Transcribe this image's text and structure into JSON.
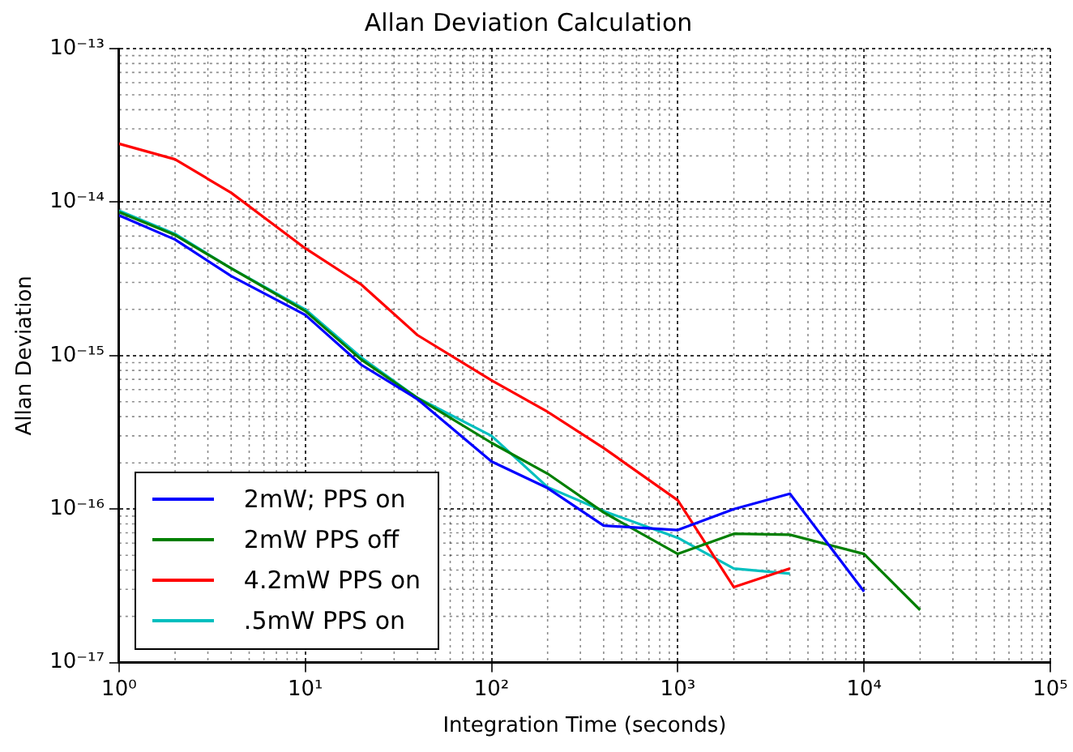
{
  "chart_data": {
    "type": "line",
    "title": "Allan Deviation Calculation",
    "xlabel": "Integration Time (seconds)",
    "ylabel": "Allan Deviation",
    "log": "xy",
    "grid": true,
    "legend": "bottom left",
    "marker": "none",
    "line_style": "solid",
    "xlim": [
      1,
      100000
    ],
    "xticks": [
      {
        "value": 1,
        "label": "10⁰"
      },
      {
        "value": 10,
        "label": "10¹"
      },
      {
        "value": 100,
        "label": "10²"
      },
      {
        "value": 1000,
        "label": "10³"
      },
      {
        "value": 10000,
        "label": "10⁴"
      },
      {
        "value": 100000,
        "label": "10⁵"
      }
    ],
    "ylim": [
      1e-17,
      1e-13
    ],
    "yticks": [
      {
        "value": 1e-17,
        "label": "10⁻¹⁷"
      },
      {
        "value": 1e-16,
        "label": "10⁻¹⁶"
      },
      {
        "value": 1e-15,
        "label": "10⁻¹⁵"
      },
      {
        "value": 1e-14,
        "label": "10⁻¹⁴"
      },
      {
        "value": 1e-13,
        "label": "10⁻¹³"
      }
    ],
    "series": [
      {
        "name": "2mW; PPS on",
        "color": "#0000ff",
        "x": [
          1,
          2,
          4,
          10,
          20,
          40,
          100,
          200,
          400,
          1000,
          2000,
          4000,
          10000
        ],
        "values": [
          8.2e-15,
          5.7e-15,
          3.3e-15,
          1.84e-15,
          8.7e-16,
          5.2e-16,
          2.04e-16,
          1.37e-16,
          7.8e-17,
          7.3e-17,
          1e-16,
          1.26e-16,
          2.9e-17
        ]
      },
      {
        "name": "2mW PPS off",
        "color": "#007f00",
        "x": [
          1,
          2,
          4,
          10,
          20,
          40,
          100,
          200,
          400,
          1000,
          2000,
          4000,
          10000,
          20000
        ],
        "values": [
          8.6e-15,
          6.1e-15,
          3.7e-15,
          1.95e-15,
          9.4e-16,
          5.3e-16,
          2.7e-16,
          1.7e-16,
          9.5e-17,
          5.1e-17,
          6.9e-17,
          6.8e-17,
          5.1e-17,
          2.2e-17
        ]
      },
      {
        "name": "4.2mW PPS on",
        "color": "#ff0000",
        "x": [
          1,
          2,
          4,
          10,
          20,
          40,
          100,
          200,
          400,
          1000,
          2000,
          4000
        ],
        "values": [
          2.4e-14,
          1.9e-14,
          1.15e-14,
          5e-15,
          2.9e-15,
          1.36e-15,
          6.9e-16,
          4.3e-16,
          2.5e-16,
          1.14e-16,
          3.1e-17,
          4.1e-17
        ]
      },
      {
        "name": ".5mW PPS on",
        "color": "#00bfbf",
        "x": [
          1,
          2,
          4,
          10,
          20,
          40,
          100,
          200,
          400,
          1000,
          2000,
          4000
        ],
        "values": [
          8.8e-15,
          6.2e-15,
          3.7e-15,
          2e-15,
          9.7e-16,
          5.3e-16,
          3e-16,
          1.39e-16,
          9.7e-17,
          6.5e-17,
          4.1e-17,
          3.8e-17
        ]
      }
    ]
  }
}
